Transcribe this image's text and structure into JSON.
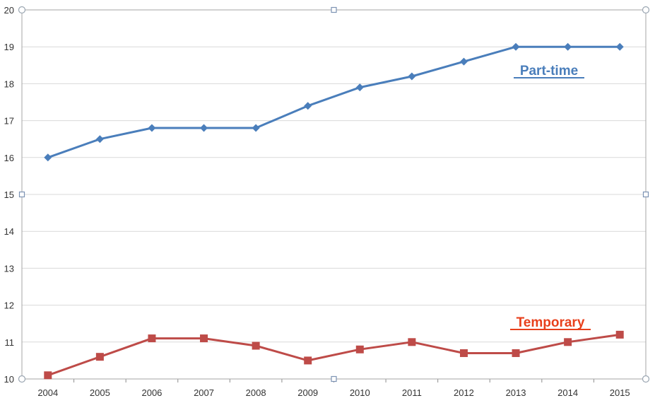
{
  "chart_data": {
    "type": "line",
    "title": "",
    "xlabel": "",
    "ylabel": "",
    "categories": [
      "2004",
      "2005",
      "2006",
      "2007",
      "2008",
      "2009",
      "2010",
      "2011",
      "2012",
      "2013",
      "2014",
      "2015"
    ],
    "ylim": [
      10,
      20
    ],
    "yticks": [
      "10",
      "11",
      "12",
      "13",
      "14",
      "15",
      "16",
      "17",
      "18",
      "19",
      "20"
    ],
    "grid": true,
    "series": [
      {
        "name": "Part-time",
        "color": "#4a7ebb",
        "marker": "diamond",
        "values": [
          16.0,
          16.5,
          16.8,
          16.8,
          16.8,
          17.4,
          17.9,
          18.2,
          18.6,
          19.0,
          19.0,
          19.0
        ]
      },
      {
        "name": "Temporary",
        "color": "#be4b48",
        "label_color": "#e8401c",
        "marker": "square",
        "values": [
          10.1,
          10.6,
          11.1,
          11.1,
          10.9,
          10.5,
          10.8,
          11.0,
          10.7,
          10.7,
          11.0,
          11.2
        ]
      }
    ]
  }
}
